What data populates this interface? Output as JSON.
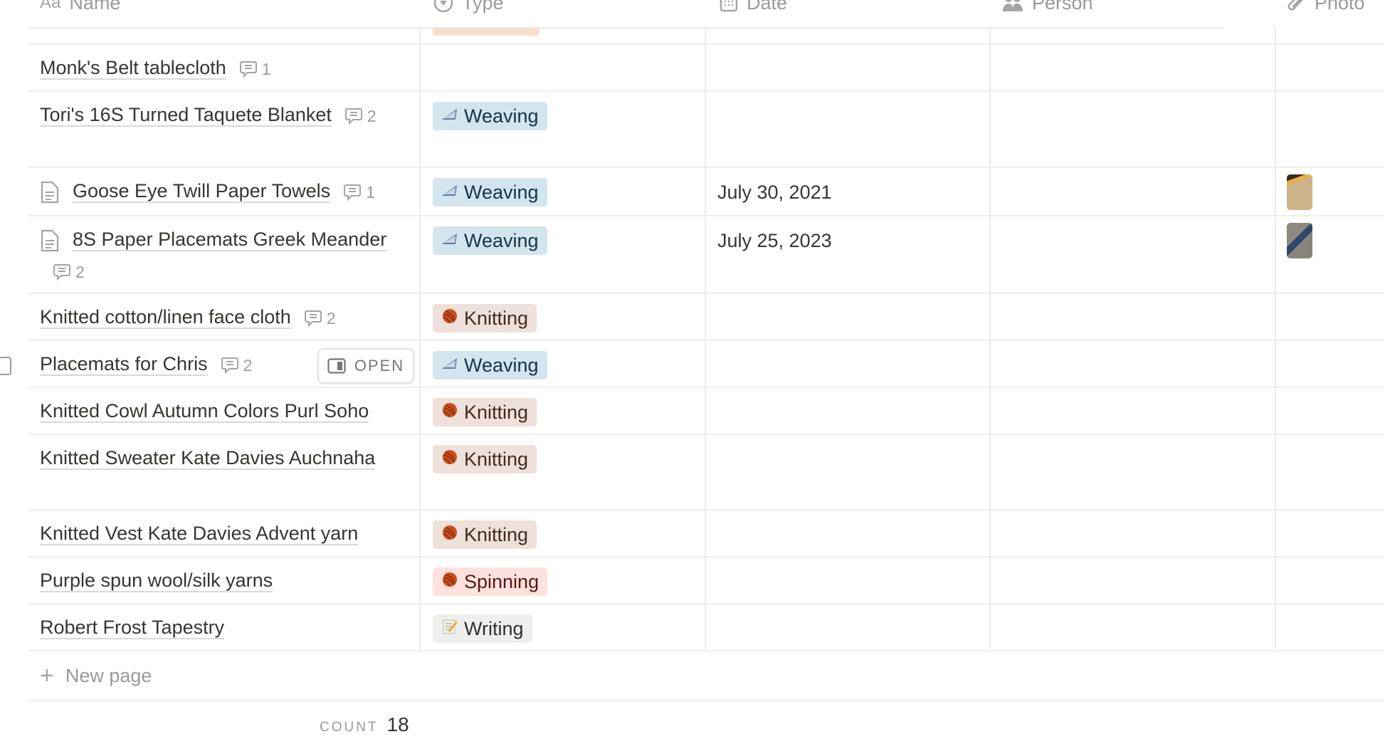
{
  "columns": [
    {
      "label": "Name",
      "icon": "text-aa-icon"
    },
    {
      "label": "Type",
      "icon": "select-icon"
    },
    {
      "label": "Date",
      "icon": "calendar-icon"
    },
    {
      "label": "Person",
      "icon": "people-icon"
    },
    {
      "label": "Photo",
      "icon": "paperclip-icon"
    }
  ],
  "tag_colors": {
    "Weaving": {
      "bg": "#d3e5ef",
      "fg": "#183347",
      "icon": "shuttle-icon"
    },
    "Knitting": {
      "bg": "#eee0da",
      "fg": "#442a1e",
      "icon": "yarn-ball-icon"
    },
    "Spinning": {
      "bg": "#ffe2dd",
      "fg": "#5d1715",
      "icon": "yarn-ball-icon"
    },
    "Writing": {
      "bg": "#efefed",
      "fg": "#32302c",
      "icon": "memo-icon"
    }
  },
  "rows": [
    {
      "name": "Monk's Belt tablecloth",
      "comments": "1"
    },
    {
      "name": "Tori's 16S Turned Taquete Blanket",
      "comments": "2",
      "type": "Weaving"
    },
    {
      "name": "Goose Eye Twill Paper Towels",
      "comments": "1",
      "type": "Weaving",
      "date": "July 30, 2021",
      "has_doc": true,
      "photo": true
    },
    {
      "name": "8S Paper Placemats Greek Meander",
      "comments": "2",
      "type": "Weaving",
      "date": "July 25, 2023",
      "has_doc": true,
      "photo": true
    },
    {
      "name": "Knitted cotton/linen face cloth",
      "comments": "2",
      "type": "Knitting"
    },
    {
      "name": "Placemats for Chris",
      "comments": "2",
      "type": "Weaving",
      "hovered": true
    },
    {
      "name": "Knitted Cowl Autumn Colors Purl Soho",
      "type": "Knitting"
    },
    {
      "name": "Knitted Sweater Kate Davies Auchnaha",
      "type": "Knitting"
    },
    {
      "name": "Knitted Vest Kate Davies Advent yarn",
      "type": "Knitting"
    },
    {
      "name": "Purple spun wool/silk yarns",
      "type": "Spinning"
    },
    {
      "name": "Robert Frost Tapestry",
      "type": "Writing"
    }
  ],
  "open_label": "OPEN",
  "new_page_label": "New page",
  "count": {
    "label": "COUNT",
    "value": "18"
  }
}
